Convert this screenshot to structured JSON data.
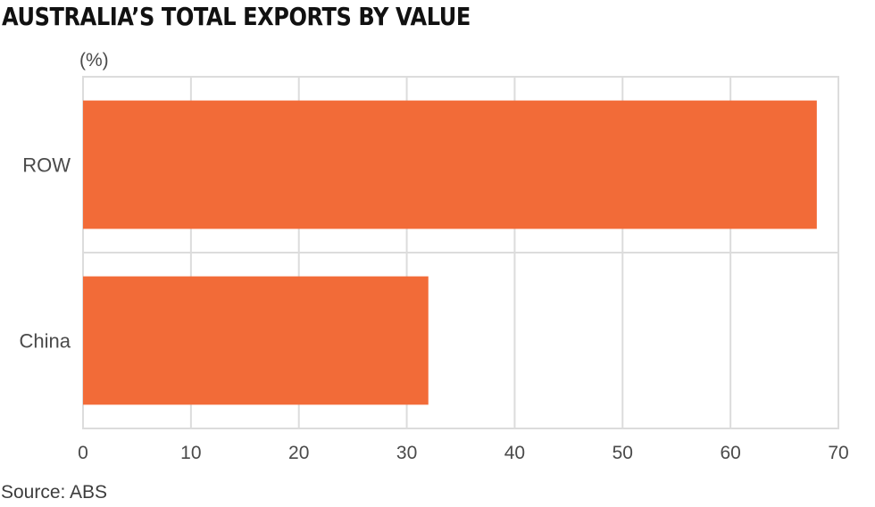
{
  "chart_data": {
    "type": "bar",
    "orientation": "horizontal",
    "title": "AUSTRALIA’S TOTAL EXPORTS BY VALUE",
    "xlabel": "(%)",
    "ylabel": "",
    "categories": [
      "ROW",
      "China"
    ],
    "values": [
      68,
      32
    ],
    "xlim": [
      0,
      70
    ],
    "xticks": [
      0,
      10,
      20,
      30,
      40,
      50,
      60,
      70
    ],
    "grid": true,
    "legend": "none",
    "bar_color": "#f26b38",
    "grid_color": "#dcdcdc"
  },
  "source": "Source: ABS"
}
